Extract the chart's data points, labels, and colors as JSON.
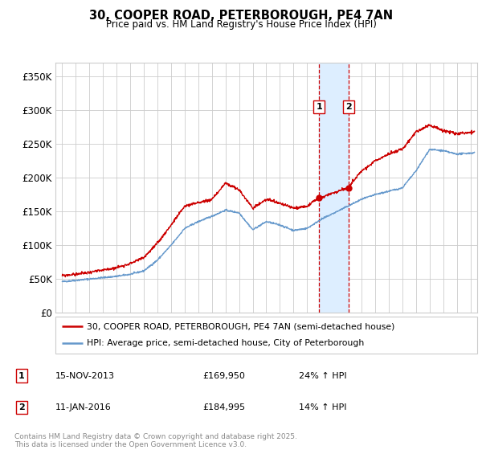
{
  "title": "30, COOPER ROAD, PETERBOROUGH, PE4 7AN",
  "subtitle": "Price paid vs. HM Land Registry's House Price Index (HPI)",
  "legend_line1": "30, COOPER ROAD, PETERBOROUGH, PE4 7AN (semi-detached house)",
  "legend_line2": "HPI: Average price, semi-detached house, City of Peterborough",
  "footer": "Contains HM Land Registry data © Crown copyright and database right 2025.\nThis data is licensed under the Open Government Licence v3.0.",
  "transactions": [
    {
      "label": "1",
      "date": "15-NOV-2013",
      "price": 169950,
      "hpi_pct": "24% ↑ HPI"
    },
    {
      "label": "2",
      "date": "11-JAN-2016",
      "price": 184995,
      "hpi_pct": "14% ↑ HPI"
    }
  ],
  "transaction_dates_numeric": [
    2013.88,
    2016.03
  ],
  "transaction_prices": [
    169950,
    184995
  ],
  "ylim": [
    0,
    370000
  ],
  "yticks": [
    0,
    50000,
    100000,
    150000,
    200000,
    250000,
    300000,
    350000
  ],
  "ytick_labels": [
    "£0",
    "£50K",
    "£100K",
    "£150K",
    "£200K",
    "£250K",
    "£300K",
    "£350K"
  ],
  "xlim": [
    1994.5,
    2025.5
  ],
  "red_color": "#cc0000",
  "blue_color": "#6699cc",
  "shade_color": "#ddeeff",
  "grid_color": "#cccccc",
  "background_color": "#ffffff"
}
